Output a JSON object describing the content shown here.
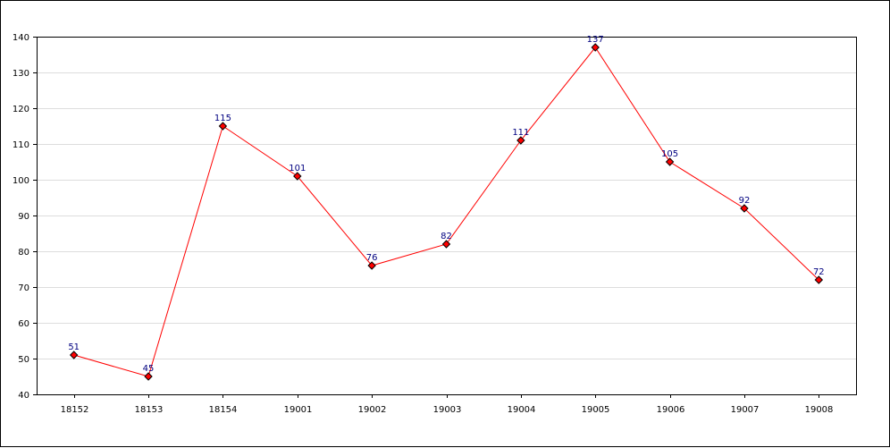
{
  "chart_data": {
    "type": "line",
    "title": "",
    "xlabel": "",
    "ylabel": "",
    "categories": [
      "18152",
      "18153",
      "18154",
      "19001",
      "19002",
      "19003",
      "19004",
      "19005",
      "19006",
      "19007",
      "19008"
    ],
    "series": [
      {
        "values": [
          51,
          45,
          115,
          101,
          76,
          82,
          111,
          137,
          105,
          92,
          72
        ],
        "color": "#ff0000",
        "marker": "diamond",
        "marker_color": "#ff0000"
      }
    ],
    "ylim": [
      40,
      140
    ],
    "yticks": [
      40,
      50,
      60,
      70,
      80,
      90,
      100,
      110,
      120,
      130,
      140
    ],
    "grid": true,
    "grid_color": "#dddddd",
    "data_label_color": "#000080",
    "show_data_labels": true,
    "legend": "none"
  }
}
